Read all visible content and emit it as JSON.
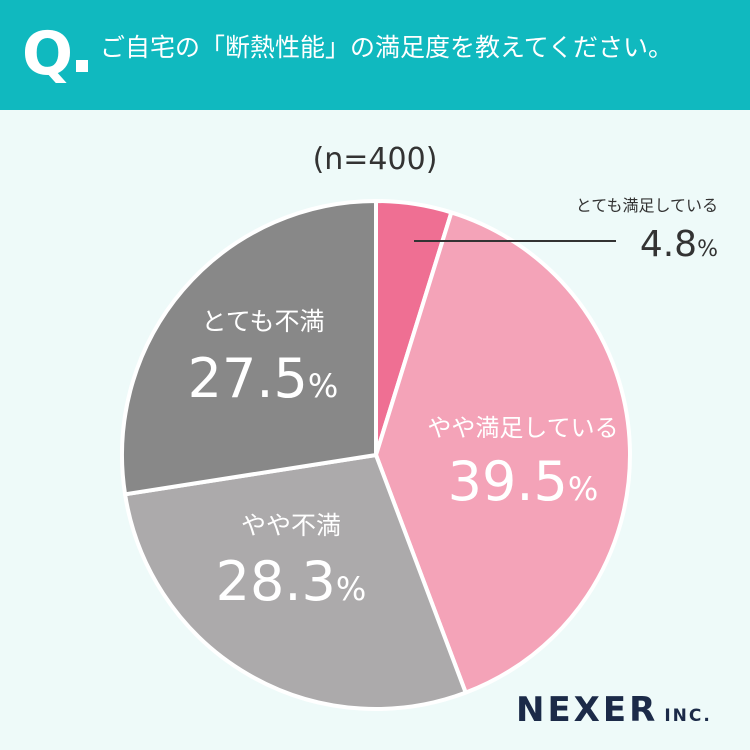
{
  "header": {
    "q_mark": "Q",
    "question": "ご自宅の「断熱性能」の満足度を教えてください。"
  },
  "sample_size": "(n=400)",
  "brand": {
    "name": "NEXER",
    "suffix": "INC."
  },
  "colors": {
    "header_bg": "#10b9bf",
    "page_bg": "#eefaf9",
    "very_satisfied": "#ef6f93",
    "somewhat_satisfied": "#f4a3b8",
    "somewhat_dissatisfied": "#acaaab",
    "very_dissatisfied": "#888888",
    "brand": "#1b2a48"
  },
  "chart_data": {
    "type": "pie",
    "title": "",
    "unit": "%",
    "slices": [
      {
        "label": "とても満足している",
        "value": 4.8,
        "value_text": "4.8",
        "color": "#ef6f93"
      },
      {
        "label": "やや満足している",
        "value": 39.5,
        "value_text": "39.5",
        "color": "#f4a3b8"
      },
      {
        "label": "やや不満",
        "value": 28.3,
        "value_text": "28.3",
        "color": "#acaaab"
      },
      {
        "label": "とても不満",
        "value": 27.5,
        "value_text": "27.5",
        "color": "#888888"
      }
    ],
    "start": "12 o'clock",
    "direction": "clockwise",
    "legend": "none"
  }
}
